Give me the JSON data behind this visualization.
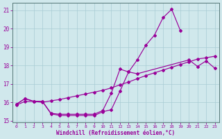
{
  "xlabel": "Windchill (Refroidissement éolien,°C)",
  "bg_color": "#d0e8ec",
  "grid_color": "#a8ccd4",
  "line_color": "#990099",
  "xlim": [
    -0.5,
    23.5
  ],
  "ylim": [
    14.9,
    21.4
  ],
  "xticks": [
    0,
    1,
    2,
    3,
    4,
    5,
    6,
    7,
    8,
    9,
    10,
    11,
    12,
    13,
    14,
    15,
    16,
    17,
    18,
    19,
    20,
    21,
    22,
    23
  ],
  "yticks": [
    15,
    16,
    17,
    18,
    19,
    20,
    21
  ],
  "line1_x": [
    0,
    1,
    2,
    3,
    4,
    5,
    6,
    7,
    8,
    9,
    10,
    11,
    12,
    13,
    14,
    15,
    16,
    17,
    18,
    19
  ],
  "line1_y": [
    15.9,
    16.2,
    16.05,
    16.05,
    15.4,
    15.35,
    15.35,
    15.35,
    15.35,
    15.35,
    15.55,
    16.5,
    17.8,
    17.65,
    18.3,
    19.1,
    19.65,
    20.6,
    21.05,
    19.9
  ],
  "line2_x": [
    0,
    1,
    2,
    3,
    4,
    5,
    6,
    7,
    8,
    9,
    10,
    11,
    12,
    13,
    14,
    20,
    21,
    22,
    23
  ],
  "line2_y": [
    15.9,
    16.2,
    16.05,
    16.05,
    15.38,
    15.28,
    15.28,
    15.28,
    15.28,
    15.28,
    15.48,
    15.6,
    16.6,
    17.65,
    17.55,
    18.3,
    17.95,
    18.25,
    17.85
  ],
  "line3_x": [
    0,
    1,
    2,
    3,
    4,
    5,
    6,
    7,
    8,
    9,
    10,
    11,
    12,
    13,
    14,
    15,
    16,
    17,
    18,
    19,
    20,
    21,
    22,
    23
  ],
  "line3_y": [
    15.85,
    16.05,
    16.05,
    16.0,
    16.08,
    16.15,
    16.25,
    16.35,
    16.45,
    16.55,
    16.65,
    16.78,
    16.95,
    17.1,
    17.28,
    17.45,
    17.6,
    17.75,
    17.9,
    18.05,
    18.2,
    18.35,
    18.42,
    18.5
  ]
}
